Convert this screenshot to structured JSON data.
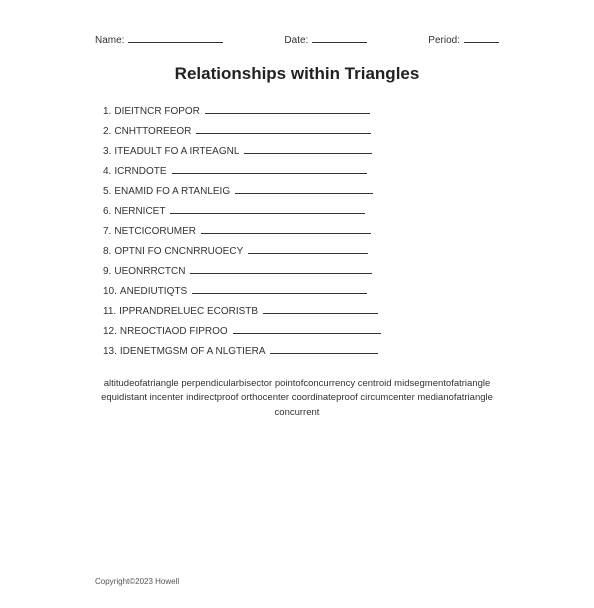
{
  "header": {
    "name_label": "Name:",
    "name_line_width": 95,
    "date_label": "Date:",
    "date_line_width": 55,
    "period_label": "Period:",
    "period_line_width": 35
  },
  "title": "Relationships within Triangles",
  "items": [
    {
      "num": "1.",
      "text": "DIEITNCR FOPOR",
      "line_width": 165
    },
    {
      "num": "2.",
      "text": "CNHTTOREEOR",
      "line_width": 175
    },
    {
      "num": "3.",
      "text": "ITEADULT FO A IRTEAGNL",
      "line_width": 128
    },
    {
      "num": "4.",
      "text": "ICRNDOTE",
      "line_width": 195
    },
    {
      "num": "5.",
      "text": "ENAMID FO A RTANLEIG",
      "line_width": 138
    },
    {
      "num": "6.",
      "text": "NERNICET",
      "line_width": 195
    },
    {
      "num": "7.",
      "text": "NETCICORUMER",
      "line_width": 170
    },
    {
      "num": "8.",
      "text": "OPTNI FO CNCNRRUOECY",
      "line_width": 120
    },
    {
      "num": "9.",
      "text": "UEONRRCTCN",
      "line_width": 182
    },
    {
      "num": "10.",
      "text": "ANEDIUTIQTS",
      "line_width": 175
    },
    {
      "num": "11.",
      "text": "IPPRANDRELUEC ECORISTB",
      "line_width": 115
    },
    {
      "num": "12.",
      "text": "NREOCTIAOD FIPROO",
      "line_width": 148
    },
    {
      "num": "13.",
      "text": "IDENETMGSM OF A NLGTIERA",
      "line_width": 108
    }
  ],
  "word_bank": "altitudeofatriangle perpendicularbisector pointofconcurrency centroid midsegmentofatriangle equidistant incenter indirectproof orthocenter coordinateproof circumcenter medianofatriangle concurrent",
  "copyright": "Copyright©2023 Howell",
  "colors": {
    "background": "#ffffff",
    "text": "#333333",
    "title_text": "#222222",
    "line": "#333333",
    "copyright_text": "#555555"
  },
  "typography": {
    "header_fontsize": 10,
    "title_fontsize": 17,
    "item_fontsize": 10,
    "wordbank_fontsize": 9.5,
    "copyright_fontsize": 8,
    "font_family": "Arial, sans-serif"
  }
}
